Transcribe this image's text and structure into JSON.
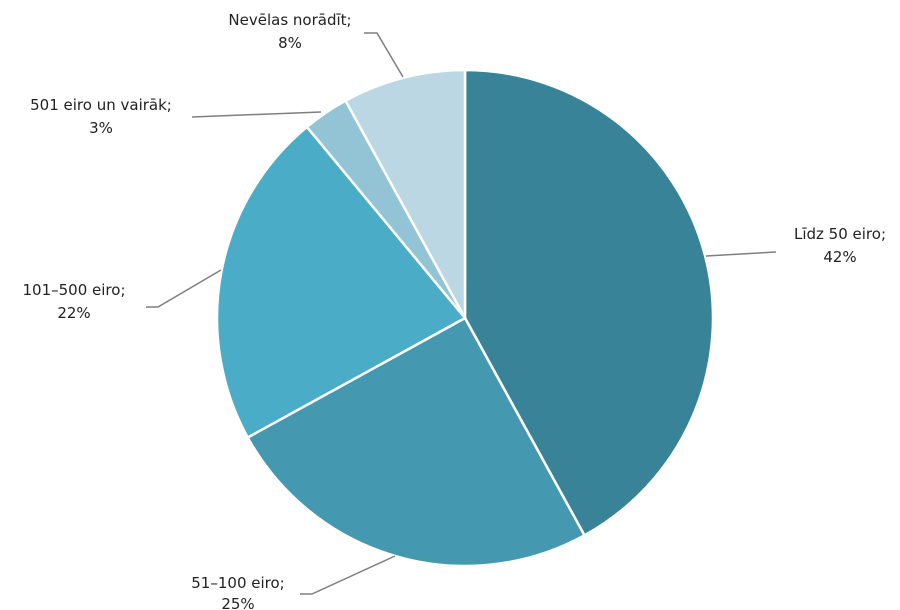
{
  "chart_data": {
    "type": "pie",
    "start_angle_deg": 0,
    "direction": "clockwise",
    "slices": [
      {
        "category": "Līdz 50 eiro;",
        "value": 42,
        "value_label": "42%",
        "color": "#388397"
      },
      {
        "category": "51–100 eiro;",
        "value": 25,
        "value_label": "25%",
        "color": "#4499b0"
      },
      {
        "category": "101–500 eiro;",
        "value": 22,
        "value_label": "22%",
        "color": "#4aacc6"
      },
      {
        "category": "501 eiro un vairāk;",
        "value": 3,
        "value_label": "3%",
        "color": "#93c4d5"
      },
      {
        "category": "Nevēlas norādīt;",
        "value": 8,
        "value_label": "8%",
        "color": "#bad7e3"
      }
    ]
  }
}
